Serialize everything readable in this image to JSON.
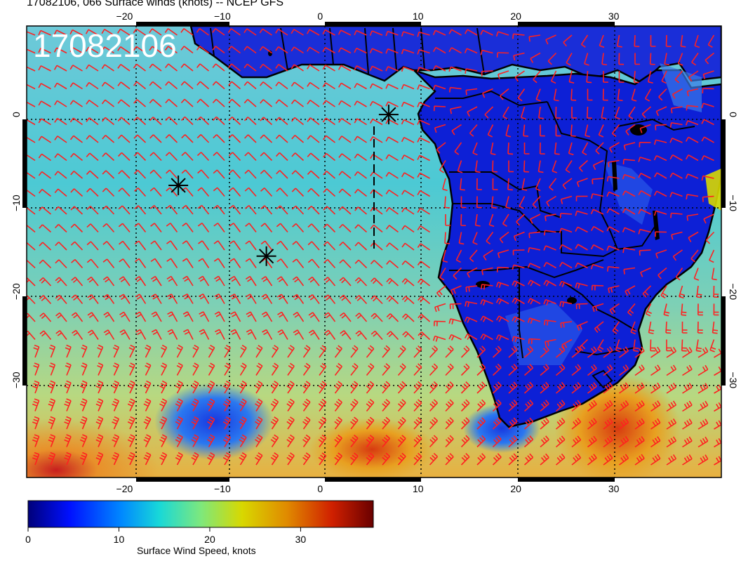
{
  "header": {
    "title": "17082106, 066 Surface winds (knots) -- NCEP GFS"
  },
  "map": {
    "stamp": "17082106",
    "lon_ticks": [
      "−20",
      "−10",
      "0",
      "10",
      "20",
      "30"
    ],
    "lat_ticks": [
      "0",
      "−10",
      "−20",
      "−30"
    ],
    "extent": {
      "lon": [
        -30,
        41
      ],
      "lat": [
        -41,
        10
      ]
    },
    "markers": [
      {
        "lon": -14.5,
        "lat": -8
      },
      {
        "lon": -5.5,
        "lat": -16
      },
      {
        "lon": 7,
        "lat": 0
      }
    ],
    "barb_color": "#ff2020"
  },
  "colorbar": {
    "label": "Surface Wind Speed, knots",
    "ticks": [
      "0",
      "10",
      "20",
      "30"
    ],
    "range": [
      0,
      38
    ],
    "colors": [
      "#00007a",
      "#0010ff",
      "#0088ff",
      "#18d8d8",
      "#7de87d",
      "#d8d800",
      "#e08a00",
      "#d02000",
      "#6a0000"
    ]
  }
}
